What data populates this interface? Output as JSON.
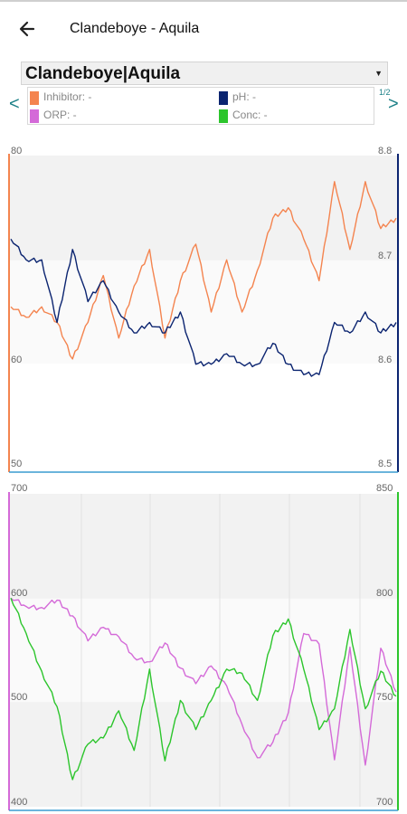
{
  "header": {
    "title": "Clandeboye - Aquila",
    "back_icon": "arrow-left-icon"
  },
  "selector": {
    "value": "Clandeboye|Aquila"
  },
  "nav": {
    "prev": "<",
    "next": ">",
    "page": "1/2"
  },
  "legend": [
    {
      "label": "Inhibitor: -",
      "color": "#f4844f"
    },
    {
      "label": "pH: -",
      "color": "#0b2470"
    },
    {
      "label": "ORP: -",
      "color": "#d46ad8"
    },
    {
      "label": "Conc: -",
      "color": "#2cc52c"
    }
  ],
  "chart_data": [
    {
      "type": "line",
      "left_axis": {
        "ticks": [
          "80",
          "60",
          "50"
        ],
        "ylim": [
          50,
          80
        ],
        "color": "#f4844f"
      },
      "right_axis": {
        "ticks": [
          "8.8",
          "8.7",
          "8.6",
          "8.5"
        ],
        "ylim": [
          8.5,
          8.8
        ],
        "color": "#0b2470"
      },
      "x": [
        0,
        4,
        8,
        12,
        16,
        20,
        24,
        28,
        32,
        36,
        40,
        44,
        48,
        52,
        56,
        60,
        64,
        68,
        72,
        76,
        80,
        84,
        88,
        92,
        96,
        100
      ],
      "series": [
        {
          "name": "Inhibitor",
          "axis": "left",
          "color": "#f4844f",
          "values": [
            65.5,
            64.5,
            65.5,
            64,
            60.5,
            64,
            68.5,
            62.5,
            67.5,
            71,
            62.5,
            68,
            71.5,
            65,
            70,
            65,
            69,
            74,
            75,
            72,
            68,
            77.5,
            71,
            77.5,
            73,
            74
          ]
        },
        {
          "name": "pH",
          "axis": "right",
          "color": "#0b2470",
          "values": [
            8.72,
            8.7,
            8.7,
            8.64,
            8.71,
            8.66,
            8.68,
            8.65,
            8.63,
            8.64,
            8.63,
            8.65,
            8.6,
            8.6,
            8.61,
            8.6,
            8.6,
            8.62,
            8.6,
            8.59,
            8.59,
            8.64,
            8.63,
            8.65,
            8.63,
            8.64
          ]
        }
      ]
    },
    {
      "type": "line",
      "left_axis": {
        "ticks": [
          "700",
          "600",
          "500",
          "400"
        ],
        "ylim": [
          400,
          700
        ],
        "color": "#d46ad8"
      },
      "right_axis": {
        "ticks": [
          "850",
          "800",
          "750",
          "700"
        ],
        "ylim": [
          700,
          850
        ],
        "color": "#2cc52c"
      },
      "x": [
        0,
        4,
        8,
        12,
        16,
        20,
        24,
        28,
        32,
        36,
        40,
        44,
        48,
        52,
        56,
        60,
        64,
        68,
        72,
        76,
        80,
        84,
        88,
        92,
        96,
        100
      ],
      "series": [
        {
          "name": "ORP",
          "axis": "left",
          "color": "#d46ad8",
          "values": [
            600,
            592,
            591,
            598,
            583,
            559,
            572,
            563,
            543,
            539,
            557,
            533,
            518,
            535,
            516,
            479,
            447,
            462,
            490,
            566,
            556,
            445,
            553,
            440,
            552,
            510
          ]
        },
        {
          "name": "Conc",
          "axis": "right",
          "color": "#2cc52c",
          "values": [
            800,
            783,
            765,
            748,
            713,
            730,
            733,
            746,
            727,
            766,
            722,
            751,
            737,
            751,
            766,
            764,
            751,
            782,
            790,
            766,
            737,
            747,
            785,
            747,
            765,
            753
          ]
        }
      ]
    }
  ]
}
